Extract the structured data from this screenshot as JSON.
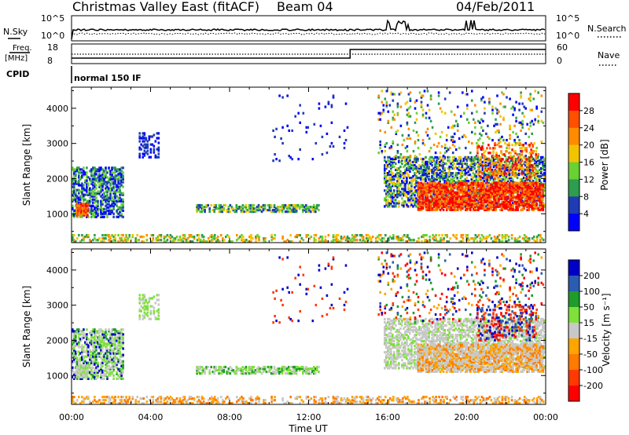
{
  "header": {
    "title": "Christmas Valley East (fitACF)",
    "beam": "Beam 04",
    "date": "04/Feb/2011"
  },
  "top_panels": {
    "nsky_label": "N.Sky",
    "nsky_ticks": [
      "10^5",
      "10^0"
    ],
    "nsearch_label": "N.Search",
    "nsearch_ticks": [
      "10^5",
      "10^0"
    ],
    "freq_label": "Freq.",
    "freq_unit": "[MHz]",
    "freq_ticks": [
      "18",
      "8"
    ],
    "nave_label": "Nave",
    "nave_ticks": [
      "60",
      "0"
    ],
    "cpid_label": "CPID",
    "cpid_value": "normal 150 IF"
  },
  "colors": {
    "power": [
      "#0000ff",
      "#1f3cb4",
      "#2d9d4f",
      "#6ad134",
      "#f2c400",
      "#ff8c00",
      "#ff5000",
      "#ff0000"
    ],
    "velocity": [
      "#0000c8",
      "#2a5cb0",
      "#1f9c2a",
      "#7fe03a",
      "#c8c8c8",
      "#ffa500",
      "#ff7a00",
      "#ff3a00",
      "#ff0000"
    ]
  },
  "chart_data": [
    {
      "type": "heatmap",
      "name": "power",
      "ylabel": "Slant Range [km]",
      "yticks": [
        "1000",
        "2000",
        "3000",
        "4000"
      ],
      "xticks": [
        "00:00",
        "04:00",
        "08:00",
        "12:00",
        "16:00",
        "20:00",
        "00:00"
      ],
      "ylim": [
        180,
        4600
      ],
      "xlim": [
        0,
        24
      ],
      "colorbar": {
        "label": "Power [dB]",
        "ticks": [
          "4",
          "8",
          "12",
          "16",
          "20",
          "24",
          "28"
        ]
      }
    },
    {
      "type": "heatmap",
      "name": "velocity",
      "ylabel": "Slant Range [km]",
      "yticks": [
        "1000",
        "2000",
        "3000",
        "4000"
      ],
      "xticks": [
        "00:00",
        "04:00",
        "08:00",
        "12:00",
        "16:00",
        "20:00",
        "00:00"
      ],
      "ylim": [
        180,
        4600
      ],
      "xlim": [
        0,
        24
      ],
      "colorbar": {
        "label": "Velocity [m s⁻¹]",
        "ticks": [
          "200",
          "100",
          "50",
          "15",
          "-15",
          "-50",
          "-100",
          "-200"
        ]
      }
    }
  ],
  "xlabel": "Time UT"
}
